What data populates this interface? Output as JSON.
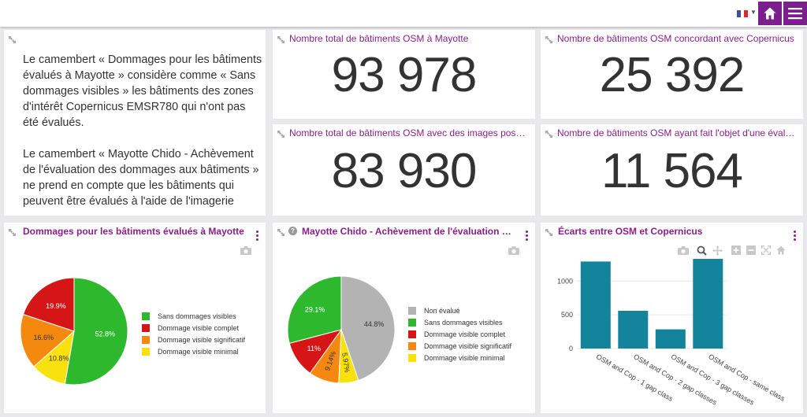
{
  "topbar": {
    "flag_colors": [
      "#3a4fb5",
      "#ffffff",
      "#e1252b"
    ]
  },
  "text_card": {
    "paragraph1": "Le camembert « Dommages pour les bâtiments évalués à Mayotte » considère comme « Sans dommages visibles » les bâtiments des zones d'intérêt Copernicus EMSR780 qui n'ont pas été évalués.",
    "paragraph2": "Le camembert « Mayotte Chido - Achèvement de l'évaluation des dommages aux bâtiments » ne prend en compte que les bâtiments qui peuvent être évalués à l'aide de l'imagerie"
  },
  "kpis": [
    {
      "title": "Nombre total de bâtiments OSM à Mayotte",
      "value": "93 978"
    },
    {
      "title": "Nombre de bâtiments OSM concordant avec Copernicus",
      "value": "25 392"
    },
    {
      "title": "Nombre total de bâtiments OSM avec des images post-cyclone",
      "value": "83 930"
    },
    {
      "title": "Nombre de bâtiments OSM ayant fait l'objet d'une évaluation",
      "value": "11 564"
    }
  ],
  "chart_data": [
    {
      "type": "pie",
      "title": "Dommages pour les bâtiments évalués à Mayotte",
      "categories": [
        "Sans dommages visibles",
        "Dommage visible complet",
        "Dommage visible significatif",
        "Dommage visible minimal"
      ],
      "values": [
        52.8,
        19.9,
        16.6,
        10.8
      ],
      "labels": [
        "52.8%",
        "19.9%",
        "16.6%",
        "10.8%"
      ],
      "colors": [
        "#2db82d",
        "#d61616",
        "#f5890f",
        "#f8e10d"
      ]
    },
    {
      "type": "pie",
      "title": "Mayotte Chido - Achèvement de l'évaluation des dommages aux bâtiments",
      "categories": [
        "Non évalué",
        "Sans dommages visibles",
        "Dommage visible complet",
        "Dommage visible significatif",
        "Dommage visible minimal"
      ],
      "values": [
        44.8,
        29.1,
        11,
        9.14,
        5.97
      ],
      "labels": [
        "44.8%",
        "29.1%",
        "11%",
        "9.14%",
        "5.97%"
      ],
      "colors": [
        "#b3b3b3",
        "#2db82d",
        "#d61616",
        "#f5890f",
        "#f8e10d"
      ]
    },
    {
      "type": "bar",
      "title": "Écarts entre OSM et Copernicus",
      "categories": [
        "OSM and Cop - 1 gap class",
        "OSM and Cop - 2 gap classes",
        "OSM and Cop - 3 gap classes",
        "OSM and Cop - same class"
      ],
      "values": [
        1290,
        560,
        285,
        1330
      ],
      "ylim": [
        0,
        1400
      ],
      "yticks": [
        0,
        500,
        1000
      ],
      "color": "#14849c",
      "grid": true
    }
  ]
}
